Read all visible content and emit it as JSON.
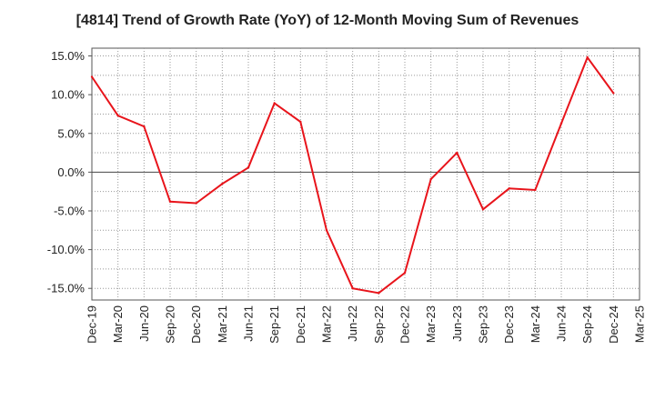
{
  "chart_data": {
    "type": "line",
    "title": "[4814]  Trend of Growth Rate (YoY) of 12-Month Moving Sum of Revenues",
    "xlabel": "",
    "ylabel": "",
    "categories": [
      "Dec-19",
      "Mar-20",
      "Jun-20",
      "Sep-20",
      "Dec-20",
      "Mar-21",
      "Jun-21",
      "Sep-21",
      "Dec-21",
      "Mar-22",
      "Jun-22",
      "Sep-22",
      "Dec-22",
      "Mar-23",
      "Jun-23",
      "Sep-23",
      "Dec-23",
      "Mar-24",
      "Jun-24",
      "Sep-24",
      "Dec-24",
      "Mar-25"
    ],
    "series": [
      {
        "color": "#e8141b",
        "values": [
          12.3,
          7.3,
          5.9,
          -3.8,
          -4.0,
          -1.5,
          0.6,
          8.9,
          6.5,
          -7.5,
          -15.0,
          -15.6,
          -13.0,
          -0.9,
          2.5,
          -4.8,
          -2.1,
          -2.3,
          6.3,
          14.8,
          10.2,
          null
        ]
      }
    ],
    "ylim": [
      -16.5,
      16.0
    ],
    "yticks": [
      15,
      10,
      5,
      0,
      -5,
      -10,
      -15
    ],
    "ytick_labels": [
      "15.0%",
      "10.0%",
      "5.0%",
      "0.0%",
      "-5.0%",
      "-10.0%",
      "-15.0%"
    ],
    "grid": true,
    "zero_line": true
  }
}
